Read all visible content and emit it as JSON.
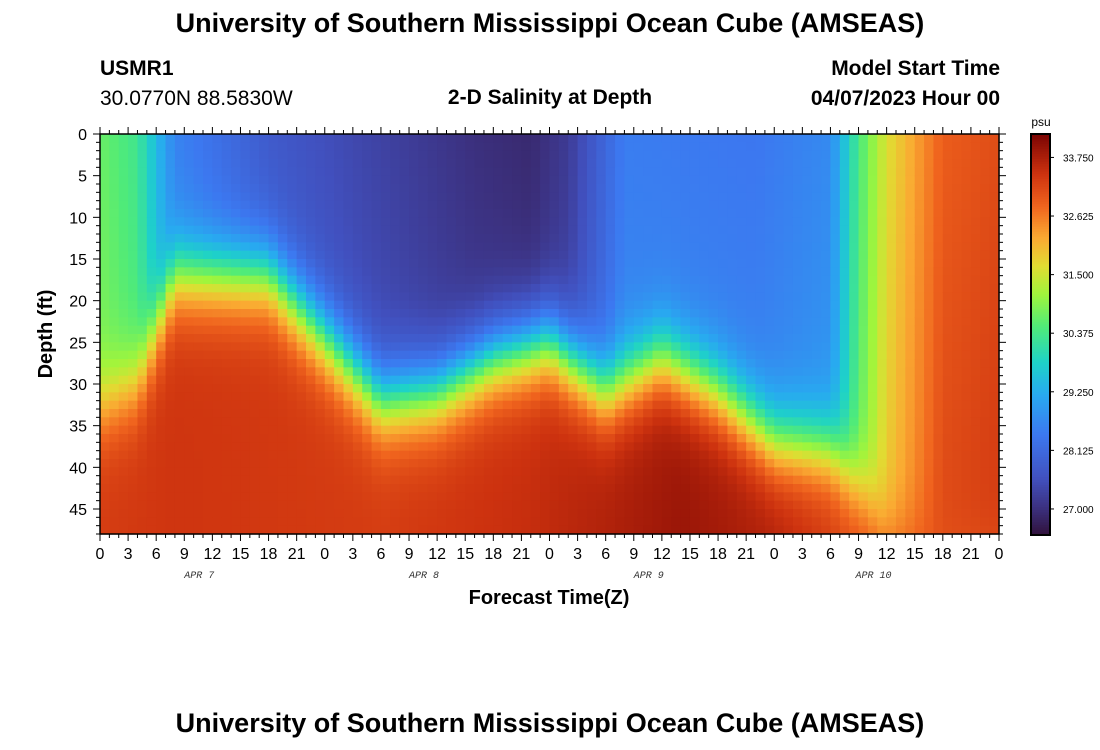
{
  "page": {
    "title": "University of Southern Mississippi Ocean Cube (AMSEAS)",
    "title_repeat": "University of Southern Mississippi Ocean Cube (AMSEAS)",
    "station_id": "USMR1",
    "station_coords": "30.0770N  88.5830W",
    "plot_title": "2-D Salinity at Depth",
    "model_start_label": "Model Start Time",
    "model_start_value": "04/07/2023 Hour 00"
  },
  "chart_data": {
    "type": "heatmap",
    "title": "2-D Salinity at Depth",
    "xlabel": "Forecast Time(Z)",
    "ylabel": "Depth (ft)",
    "x_hours_range": [
      0,
      96
    ],
    "x_tick_step_hours": 3,
    "x_tick_labels": [
      "0",
      "3",
      "6",
      "9",
      "12",
      "15",
      "18",
      "21",
      "0",
      "3",
      "6",
      "9",
      "12",
      "15",
      "18",
      "21",
      "0",
      "3",
      "6",
      "9",
      "12",
      "15",
      "18",
      "21",
      "0",
      "3",
      "6",
      "9",
      "12",
      "15",
      "18",
      "21",
      "0"
    ],
    "date_labels": [
      {
        "label": "APR 7",
        "hour": 9
      },
      {
        "label": "APR 8",
        "hour": 33
      },
      {
        "label": "APR 9",
        "hour": 57
      },
      {
        "label": "APR 10",
        "hour": 81
      }
    ],
    "y_range_ft": [
      0,
      48
    ],
    "y_ticks": [
      0,
      5,
      10,
      15,
      20,
      25,
      30,
      35,
      40,
      45
    ],
    "y_tick_labels": [
      "0",
      "5",
      "10",
      "15",
      "20",
      "25",
      "30",
      "35",
      "40",
      "45"
    ],
    "colorbar": {
      "units": "psu",
      "min": 26.5,
      "max": 34.2,
      "tick_values": [
        27.0,
        28.125,
        29.25,
        30.375,
        31.5,
        32.625,
        33.75
      ],
      "tick_labels": [
        "27.000",
        "28.125",
        "29.250",
        "30.375",
        "31.500",
        "32.625",
        "33.750"
      ]
    },
    "fields": {
      "surface_salinity_knots": [
        [
          0,
          30.7
        ],
        [
          4,
          30.3
        ],
        [
          8,
          28.6
        ],
        [
          18,
          27.8
        ],
        [
          28,
          27.4
        ],
        [
          40,
          27.0
        ],
        [
          46,
          26.9
        ],
        [
          50,
          27.2
        ],
        [
          56,
          28.5
        ],
        [
          70,
          28.4
        ],
        [
          78,
          28.7
        ],
        [
          81,
          30.4
        ],
        [
          84,
          31.6
        ],
        [
          90,
          32.9
        ],
        [
          96,
          33.1
        ]
      ],
      "mixed_layer_depth_ft_knots": [
        [
          0,
          33
        ],
        [
          4,
          30
        ],
        [
          8,
          17
        ],
        [
          18,
          17
        ],
        [
          22,
          22
        ],
        [
          30,
          32
        ],
        [
          36,
          31
        ],
        [
          42,
          27
        ],
        [
          48,
          25
        ],
        [
          54,
          31
        ],
        [
          60,
          27
        ],
        [
          66,
          31
        ],
        [
          72,
          37
        ],
        [
          78,
          38
        ],
        [
          82,
          44
        ],
        [
          84,
          48
        ]
      ],
      "bottom_salinity_knots": [
        [
          0,
          33.3
        ],
        [
          8,
          33.4
        ],
        [
          30,
          33.3
        ],
        [
          46,
          33.5
        ],
        [
          62,
          33.9
        ],
        [
          72,
          33.7
        ],
        [
          80,
          33.2
        ],
        [
          86,
          33.0
        ],
        [
          96,
          33.0
        ]
      ]
    }
  }
}
